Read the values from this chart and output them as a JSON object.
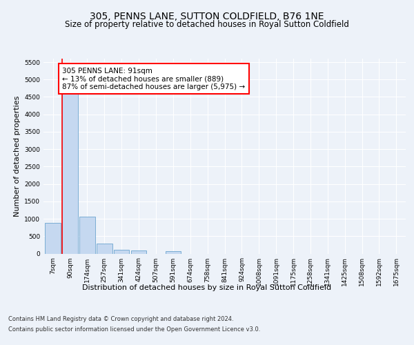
{
  "title": "305, PENNS LANE, SUTTON COLDFIELD, B76 1NE",
  "subtitle": "Size of property relative to detached houses in Royal Sutton Coldfield",
  "xlabel": "Distribution of detached houses by size in Royal Sutton Coldfield",
  "ylabel": "Number of detached properties",
  "categories": [
    "7sqm",
    "90sqm",
    "174sqm",
    "257sqm",
    "341sqm",
    "424sqm",
    "507sqm",
    "591sqm",
    "674sqm",
    "758sqm",
    "841sqm",
    "924sqm",
    "1008sqm",
    "1091sqm",
    "1175sqm",
    "1258sqm",
    "1341sqm",
    "1425sqm",
    "1508sqm",
    "1592sqm",
    "1675sqm"
  ],
  "values": [
    880,
    4580,
    1060,
    290,
    100,
    80,
    0,
    60,
    0,
    0,
    0,
    0,
    0,
    0,
    0,
    0,
    0,
    0,
    0,
    0,
    0
  ],
  "bar_color": "#c5d8f0",
  "bar_edge_color": "#7aadd4",
  "vline_color": "red",
  "annotation_text": "305 PENNS LANE: 91sqm\n← 13% of detached houses are smaller (889)\n87% of semi-detached houses are larger (5,975) →",
  "annotation_box_color": "white",
  "annotation_box_edge_color": "red",
  "ylim": [
    0,
    5600
  ],
  "yticks": [
    0,
    500,
    1000,
    1500,
    2000,
    2500,
    3000,
    3500,
    4000,
    4500,
    5000,
    5500
  ],
  "footer_line1": "Contains HM Land Registry data © Crown copyright and database right 2024.",
  "footer_line2": "Contains public sector information licensed under the Open Government Licence v3.0.",
  "bg_color": "#edf2f9",
  "plot_bg_color": "#edf2f9",
  "title_fontsize": 10,
  "subtitle_fontsize": 8.5,
  "tick_fontsize": 6.5,
  "ylabel_fontsize": 8,
  "xlabel_fontsize": 8,
  "annotation_fontsize": 7.5,
  "footer_fontsize": 6
}
